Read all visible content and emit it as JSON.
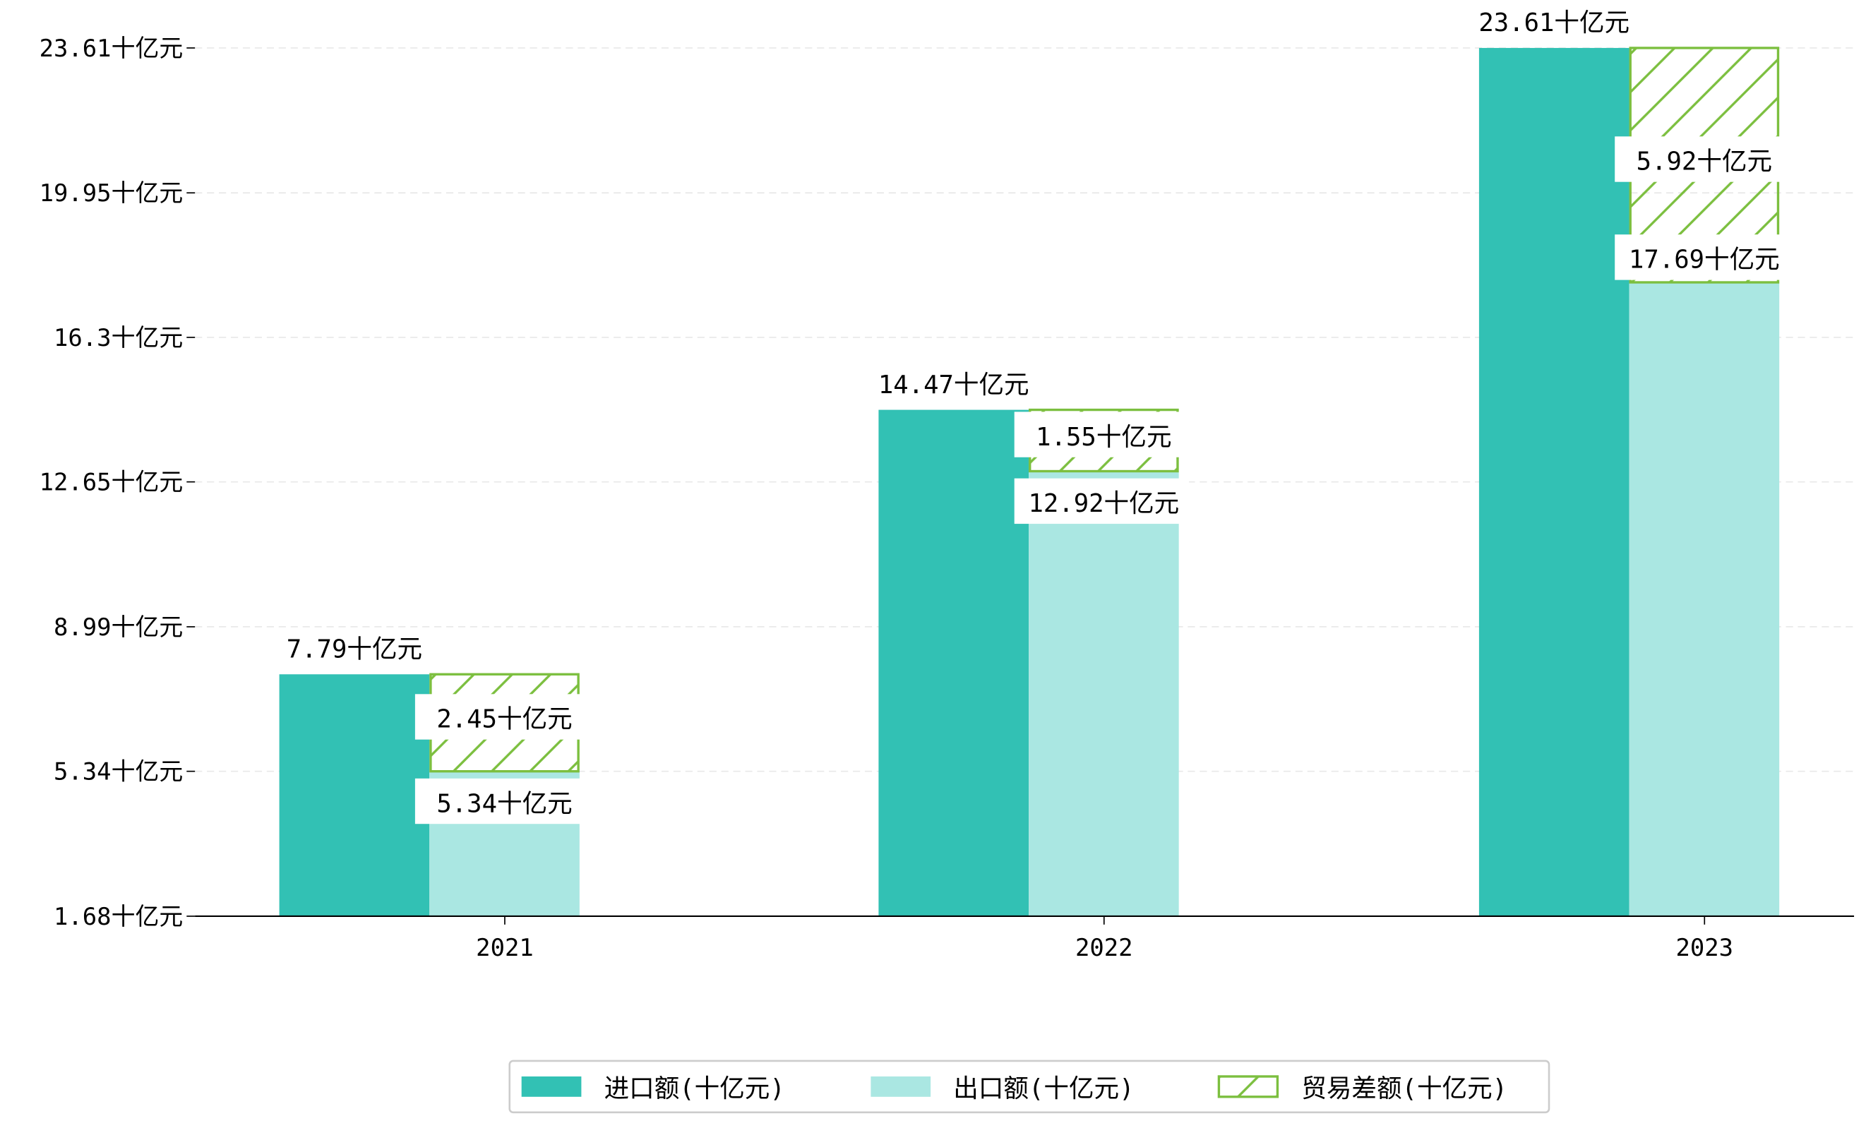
{
  "chart_data": {
    "type": "bar",
    "title": "",
    "xlabel": "",
    "ylabel": "",
    "categories": [
      "2021",
      "2022",
      "2023"
    ],
    "series": [
      {
        "name": "进口额(十亿元)",
        "values": [
          7.79,
          14.47,
          23.61
        ],
        "color": "#32c1b4"
      },
      {
        "name": "出口额(十亿元)",
        "values": [
          5.34,
          12.92,
          17.69
        ],
        "color": "#aae7e2"
      },
      {
        "name": "贸易差额(十亿元)",
        "values": [
          2.45,
          1.55,
          5.92
        ],
        "color": "#7cbf3f",
        "style": "hatched, stacked on 出口额"
      }
    ],
    "unit": "十亿元",
    "yticks": [
      1.68,
      5.34,
      8.99,
      12.65,
      16.3,
      19.95,
      23.61
    ],
    "ytick_labels": [
      "1.68十亿元",
      "5.34十亿元",
      "8.99十亿元",
      "12.65十亿元",
      "16.3十亿元",
      "19.95十亿元",
      "23.61十亿元"
    ],
    "ylim": [
      1.68,
      23.61
    ],
    "grid": "horizontal dashed",
    "legend_position": "bottom-center"
  }
}
